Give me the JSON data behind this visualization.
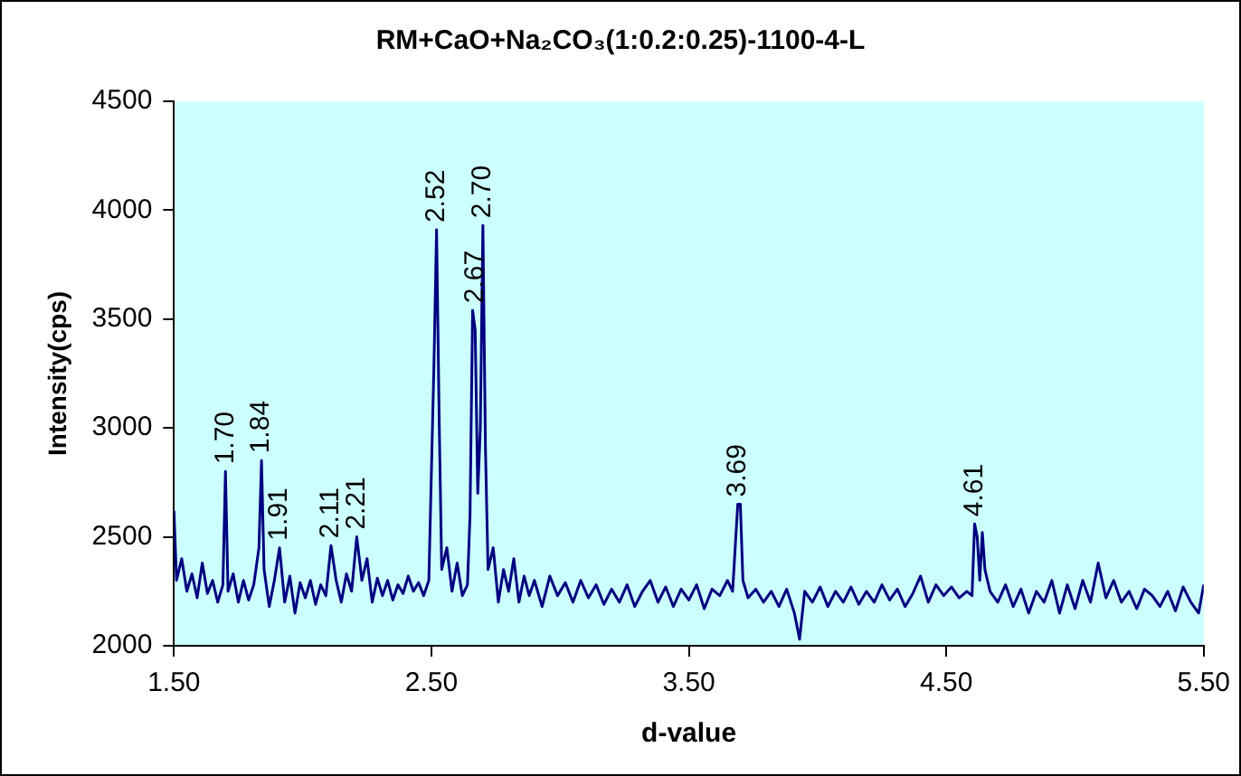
{
  "chart_data": {
    "type": "line",
    "title": "RM+CaO+Na₂CO₃(1:0.2:0.25)-1100-4-L",
    "xlabel": "d-value",
    "ylabel": "Intensity(cps)",
    "xlim": [
      1.5,
      5.5
    ],
    "xticks": [
      {
        "value": 1.5,
        "label": "1.50"
      },
      {
        "value": 2.5,
        "label": "2.50"
      },
      {
        "value": 3.5,
        "label": "3.50"
      },
      {
        "value": 4.5,
        "label": "4.50"
      },
      {
        "value": 5.5,
        "label": "5.50"
      }
    ],
    "ylim": [
      2000,
      4500
    ],
    "yticks": [
      2000,
      2500,
      3000,
      3500,
      4000,
      4500
    ],
    "grid": false,
    "legend": false,
    "marker": "none",
    "line_style": "solid",
    "series": [
      {
        "color": "#000080",
        "x": [
          1.5,
          1.51,
          1.53,
          1.55,
          1.57,
          1.59,
          1.61,
          1.63,
          1.65,
          1.67,
          1.69,
          1.7,
          1.71,
          1.73,
          1.75,
          1.77,
          1.79,
          1.81,
          1.83,
          1.84,
          1.85,
          1.87,
          1.89,
          1.91,
          1.93,
          1.95,
          1.97,
          1.99,
          2.01,
          2.03,
          2.05,
          2.07,
          2.09,
          2.11,
          2.13,
          2.15,
          2.17,
          2.19,
          2.21,
          2.23,
          2.25,
          2.27,
          2.29,
          2.31,
          2.33,
          2.35,
          2.37,
          2.39,
          2.41,
          2.43,
          2.45,
          2.47,
          2.49,
          2.51,
          2.52,
          2.53,
          2.54,
          2.56,
          2.58,
          2.6,
          2.62,
          2.64,
          2.65,
          2.66,
          2.67,
          2.68,
          2.69,
          2.7,
          2.71,
          2.72,
          2.74,
          2.76,
          2.78,
          2.8,
          2.82,
          2.84,
          2.86,
          2.88,
          2.9,
          2.93,
          2.96,
          2.99,
          3.02,
          3.05,
          3.08,
          3.11,
          3.14,
          3.17,
          3.2,
          3.23,
          3.26,
          3.29,
          3.32,
          3.35,
          3.38,
          3.41,
          3.44,
          3.47,
          3.5,
          3.53,
          3.56,
          3.59,
          3.62,
          3.65,
          3.67,
          3.68,
          3.69,
          3.7,
          3.71,
          3.73,
          3.76,
          3.79,
          3.82,
          3.85,
          3.88,
          3.91,
          3.93,
          3.95,
          3.98,
          4.01,
          4.04,
          4.07,
          4.1,
          4.13,
          4.16,
          4.19,
          4.22,
          4.25,
          4.28,
          4.31,
          4.34,
          4.37,
          4.4,
          4.43,
          4.46,
          4.49,
          4.52,
          4.55,
          4.58,
          4.6,
          4.61,
          4.62,
          4.63,
          4.64,
          4.65,
          4.67,
          4.7,
          4.73,
          4.76,
          4.79,
          4.82,
          4.85,
          4.88,
          4.91,
          4.94,
          4.97,
          5.0,
          5.03,
          5.06,
          5.09,
          5.12,
          5.15,
          5.18,
          5.21,
          5.24,
          5.27,
          5.3,
          5.33,
          5.36,
          5.39,
          5.42,
          5.45,
          5.48,
          5.5
        ],
        "values": [
          2620,
          2300,
          2400,
          2250,
          2330,
          2220,
          2380,
          2240,
          2300,
          2200,
          2280,
          2800,
          2250,
          2330,
          2200,
          2300,
          2210,
          2280,
          2450,
          2850,
          2350,
          2180,
          2300,
          2450,
          2200,
          2320,
          2150,
          2290,
          2220,
          2300,
          2190,
          2280,
          2230,
          2460,
          2300,
          2200,
          2330,
          2250,
          2500,
          2300,
          2400,
          2200,
          2310,
          2230,
          2300,
          2210,
          2280,
          2240,
          2320,
          2250,
          2290,
          2230,
          2300,
          3300,
          3910,
          3050,
          2350,
          2450,
          2250,
          2380,
          2230,
          2280,
          2600,
          3540,
          3450,
          2700,
          3000,
          3930,
          2900,
          2350,
          2450,
          2200,
          2350,
          2250,
          2400,
          2200,
          2320,
          2230,
          2300,
          2180,
          2320,
          2230,
          2290,
          2200,
          2300,
          2220,
          2280,
          2190,
          2260,
          2200,
          2280,
          2180,
          2250,
          2300,
          2200,
          2270,
          2180,
          2260,
          2210,
          2280,
          2170,
          2260,
          2230,
          2300,
          2250,
          2450,
          2650,
          2650,
          2300,
          2220,
          2260,
          2200,
          2250,
          2180,
          2260,
          2150,
          2030,
          2250,
          2200,
          2270,
          2180,
          2250,
          2200,
          2270,
          2190,
          2250,
          2200,
          2280,
          2210,
          2260,
          2180,
          2240,
          2320,
          2200,
          2280,
          2230,
          2270,
          2220,
          2250,
          2230,
          2560,
          2500,
          2300,
          2520,
          2350,
          2250,
          2200,
          2280,
          2180,
          2260,
          2150,
          2250,
          2200,
          2300,
          2150,
          2280,
          2170,
          2300,
          2200,
          2380,
          2220,
          2300,
          2200,
          2250,
          2170,
          2260,
          2230,
          2180,
          2250,
          2160,
          2270,
          2200,
          2150,
          2280
        ]
      }
    ],
    "annotations": [
      {
        "text": "1.70",
        "x": 1.7,
        "y": 2800
      },
      {
        "text": "1.84",
        "x": 1.84,
        "y": 2850
      },
      {
        "text": "1.91",
        "x": 1.91,
        "y": 2450
      },
      {
        "text": "2.11",
        "x": 2.11,
        "y": 2460
      },
      {
        "text": "2.21",
        "x": 2.21,
        "y": 2500
      },
      {
        "text": "2.52",
        "x": 2.52,
        "y": 3910
      },
      {
        "text": "2.67",
        "x": 2.67,
        "y": 3540
      },
      {
        "text": "2.70",
        "x": 2.7,
        "y": 3930
      },
      {
        "text": "3.69",
        "x": 3.69,
        "y": 2650
      },
      {
        "text": "4.61",
        "x": 4.61,
        "y": 2560
      }
    ]
  }
}
